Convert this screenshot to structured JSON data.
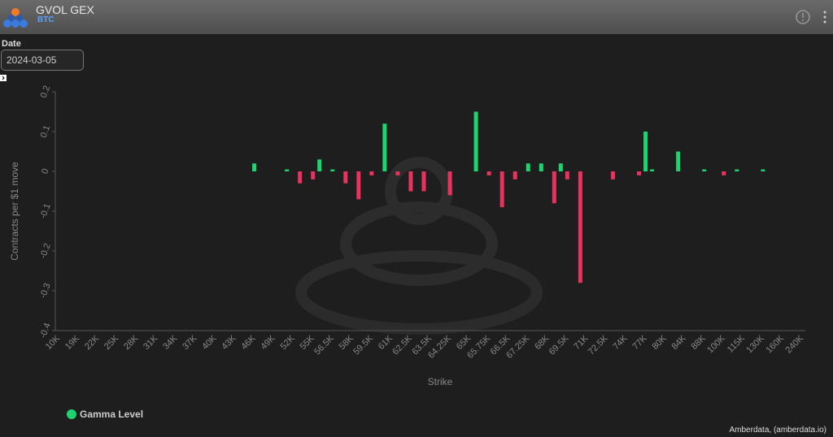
{
  "header": {
    "title": "GVOL GEX",
    "subtitle": "BTC"
  },
  "date_filter": {
    "label": "Date",
    "value": "2024-03-05"
  },
  "footer": "Amberdata, (amberdata.io)",
  "chart_data": {
    "type": "bar",
    "y_axis_label": "Contracts per $1 move",
    "x_axis_label": "Strike",
    "categories": [
      "10K",
      null,
      null,
      "19K",
      null,
      null,
      "22K",
      null,
      null,
      "25K",
      null,
      null,
      "28K",
      null,
      null,
      "31K",
      null,
      null,
      "34K",
      null,
      null,
      "37K",
      null,
      null,
      "40K",
      null,
      null,
      "43K",
      null,
      null,
      "46K",
      null,
      null,
      "49K",
      null,
      null,
      "52K",
      null,
      null,
      "55K",
      null,
      null,
      "56.5K",
      null,
      null,
      "58K",
      null,
      null,
      "59.5K",
      null,
      null,
      "61K",
      null,
      null,
      "62.5K",
      null,
      null,
      "63.5K",
      null,
      null,
      "64.25K",
      null,
      null,
      "65K",
      null,
      null,
      "65.75K",
      null,
      null,
      "66.5K",
      null,
      null,
      "67.25K",
      null,
      null,
      "68K",
      null,
      null,
      "69.5K",
      null,
      null,
      "71K",
      null,
      null,
      "72.5K",
      null,
      null,
      "74K",
      null,
      null,
      "77K",
      null,
      null,
      "80K",
      null,
      null,
      "84K",
      null,
      null,
      "88K",
      null,
      null,
      "100K",
      null,
      null,
      "115K",
      null,
      null,
      "130K",
      null,
      null,
      "160K",
      null,
      null,
      "240K"
    ],
    "series": [
      {
        "name": "Gamma Level",
        "color": "#1ed46e",
        "negative_color": "#e8335e",
        "values": [
          null,
          null,
          null,
          null,
          null,
          null,
          null,
          null,
          null,
          null,
          null,
          null,
          null,
          null,
          null,
          null,
          null,
          null,
          null,
          null,
          null,
          null,
          null,
          null,
          null,
          null,
          null,
          null,
          null,
          null,
          0.02,
          null,
          null,
          null,
          null,
          0.005,
          null,
          -0.03,
          null,
          -0.02,
          0.03,
          null,
          0.005,
          null,
          -0.03,
          null,
          -0.07,
          null,
          -0.01,
          null,
          0.12,
          null,
          -0.01,
          null,
          -0.05,
          null,
          -0.05,
          null,
          null,
          null,
          -0.06,
          null,
          null,
          null,
          0.15,
          null,
          -0.01,
          null,
          -0.09,
          null,
          -0.02,
          null,
          0.02,
          null,
          0.02,
          null,
          -0.08,
          0.02,
          -0.02,
          null,
          -0.28,
          null,
          null,
          null,
          null,
          -0.02,
          null,
          null,
          null,
          -0.01,
          0.1,
          0.005,
          null,
          null,
          null,
          0.05,
          null,
          null,
          null,
          0.005,
          null,
          null,
          -0.01,
          null,
          0.005,
          null,
          null,
          null,
          0.005,
          null,
          null,
          null,
          null,
          null,
          null
        ]
      }
    ],
    "ylim": [
      -0.4,
      0.2
    ],
    "yticks": [
      -0.4,
      -0.3,
      -0.2,
      -0.1,
      0,
      0.1,
      0.2
    ],
    "grid": false
  }
}
